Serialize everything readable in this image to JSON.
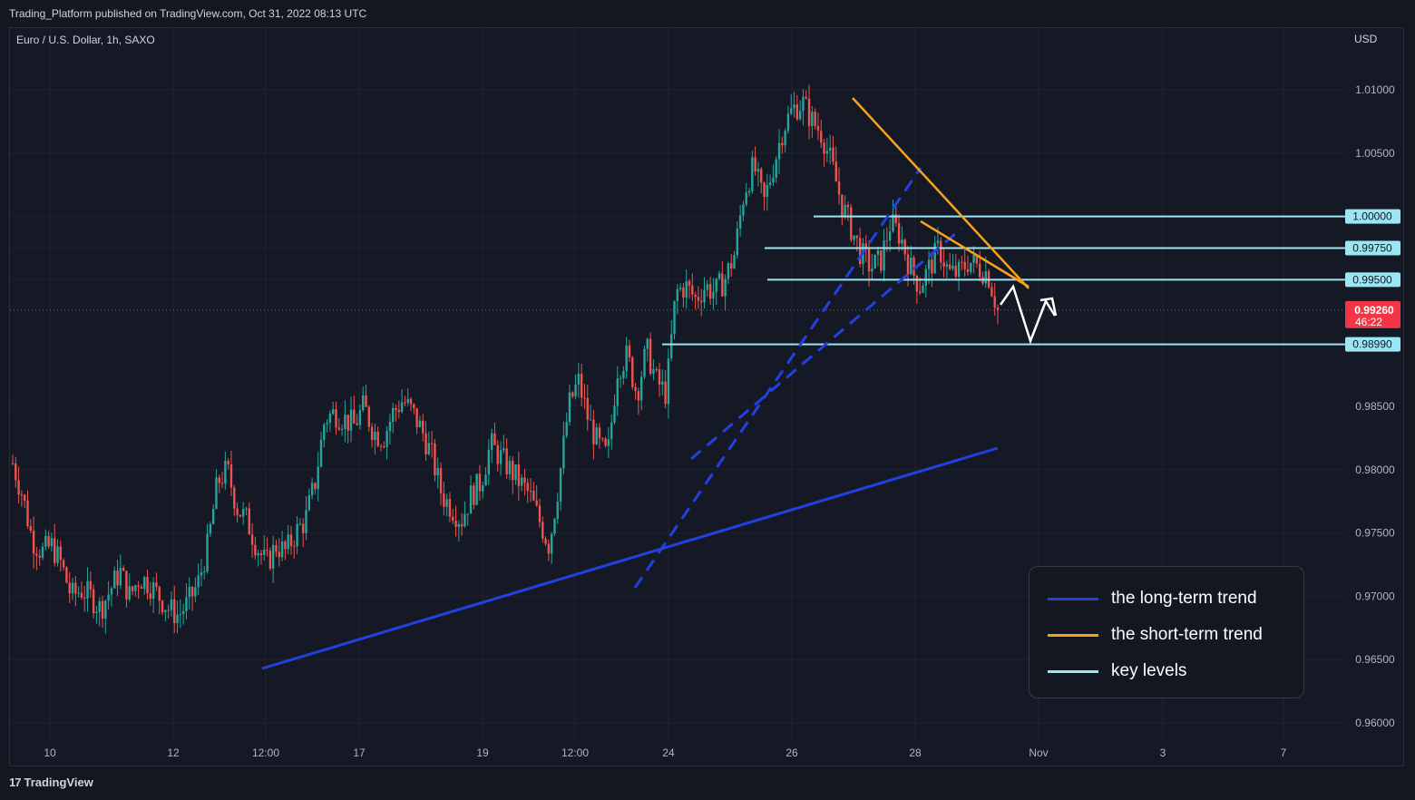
{
  "header": {
    "publish_line": "Trading_Platform published on TradingView.com, Oct 31, 2022 08:13 UTC",
    "symbol_line": "Euro / U.S. Dollar, 1h, SAXO",
    "currency": "USD"
  },
  "footer": {
    "brand": "TradingView",
    "brand_mark": "17"
  },
  "price_axis": {
    "ticks": [
      "1.01000",
      "1.00500",
      "1.00000",
      "0.99750",
      "0.99500",
      "0.98500",
      "0.98000",
      "0.97500",
      "0.97000",
      "0.96500",
      "0.96000"
    ],
    "tick_values": [
      1.01,
      1.005,
      1.0,
      0.9975,
      0.995,
      0.985,
      0.98,
      0.975,
      0.97,
      0.965,
      0.96
    ],
    "highlighted": [
      1.0,
      0.9975,
      0.995,
      0.9899
    ],
    "current_price": "0.99260",
    "current_price_value": 0.9926,
    "countdown": "46:22"
  },
  "time_axis": {
    "labels": [
      "10",
      "12",
      "12:00",
      "17",
      "19",
      "12:00",
      "24",
      "26",
      "28",
      "Nov",
      "3",
      "7"
    ]
  },
  "key_levels": [
    {
      "label": "1.00000",
      "value": 1.0
    },
    {
      "label": "0.99750",
      "value": 0.9975
    },
    {
      "label": "0.99500",
      "value": 0.995
    },
    {
      "label": "0.98990",
      "value": 0.9899
    }
  ],
  "legend": [
    {
      "label": "the long-term trend",
      "color": "#2340e0"
    },
    {
      "label": "the short-term trend",
      "color": "#f7a21b"
    },
    {
      "label": "key levels",
      "color": "#9ae6f2"
    }
  ],
  "colors": {
    "up_candle": "#26a69a",
    "down_candle": "#ef5350",
    "current_price_badge": "#f23645",
    "long_trend": "#2340e0",
    "short_trend": "#f7a21b",
    "key_level": "#9ae6f2",
    "projection": "#ffffff"
  },
  "chart_data": {
    "type": "candlestick",
    "instrument": "Euro / U.S. Dollar",
    "timeframe": "1h",
    "y_range": [
      0.9575,
      1.0125
    ],
    "close_path": [
      0.9805,
      0.978,
      0.9745,
      0.9735,
      0.974,
      0.9725,
      0.97,
      0.9705,
      0.97,
      0.969,
      0.9705,
      0.972,
      0.97,
      0.9715,
      0.971,
      0.97,
      0.969,
      0.9685,
      0.9695,
      0.971,
      0.974,
      0.979,
      0.98,
      0.977,
      0.976,
      0.974,
      0.9725,
      0.974,
      0.9735,
      0.975,
      0.976,
      0.979,
      0.984,
      0.9845,
      0.984,
      0.9835,
      0.985,
      0.983,
      0.9825,
      0.9845,
      0.9855,
      0.9845,
      0.983,
      0.981,
      0.978,
      0.977,
      0.976,
      0.978,
      0.979,
      0.982,
      0.981,
      0.98,
      0.979,
      0.978,
      0.976,
      0.974,
      0.979,
      0.985,
      0.987,
      0.984,
      0.982,
      0.981,
      0.988,
      0.989,
      0.986,
      0.9895,
      0.987,
      0.986,
      0.994,
      0.9945,
      0.9935,
      0.9945,
      0.994,
      0.995,
      0.997,
      1.002,
      1.004,
      1.001,
      1.004,
      1.007,
      1.0085,
      1.009,
      1.0075,
      1.0065,
      1.004,
      1.001,
      0.999,
      0.997,
      0.996,
      0.9965,
      0.9995,
      0.9985,
      0.996,
      0.9945,
      0.996,
      0.9975,
      0.9955,
      0.9955,
      0.9965,
      0.996,
      0.9955,
      0.9926
    ]
  }
}
